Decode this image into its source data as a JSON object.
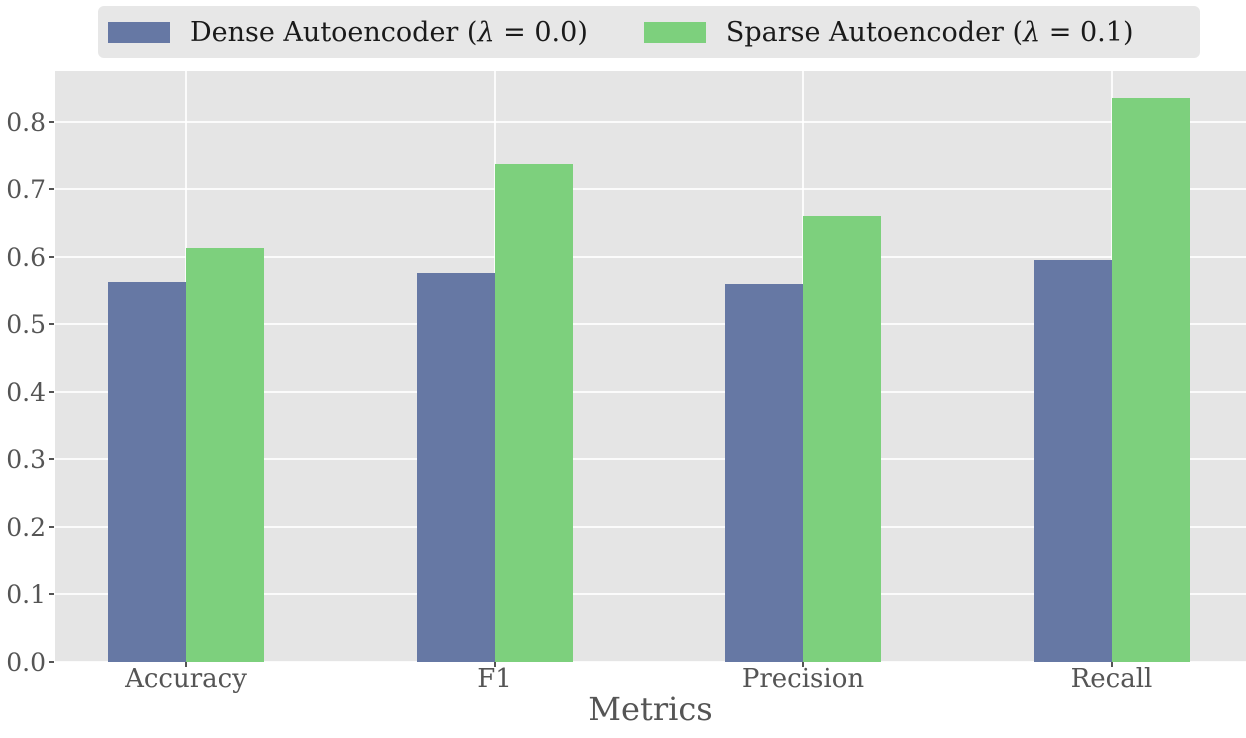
{
  "figure": {
    "background": "#ffffff",
    "plot_background": "#e5e5e5",
    "gridline_color": "#ffffff",
    "tick_text_color": "#555555",
    "legend_background": "#e7e7e7",
    "legend_text_color": "#1a1a1a"
  },
  "legend": {
    "entries": [
      {
        "pre": "Dense Autoencoder (",
        "lambda": "λ",
        "post": " = 0.0)",
        "color": "#6678a4"
      },
      {
        "pre": "Sparse Autoencoder (",
        "lambda": "λ",
        "post": " = 0.1)",
        "color": "#7dd07d"
      }
    ]
  },
  "chart_data": {
    "type": "bar",
    "title": "",
    "xlabel": "Metrics",
    "ylabel": "",
    "categories": [
      "Accuracy",
      "F1",
      "Precision",
      "Recall"
    ],
    "series": [
      {
        "name": "Dense Autoencoder (λ = 0.0)",
        "color": "#6678a4",
        "values": [
          0.563,
          0.576,
          0.559,
          0.595
        ]
      },
      {
        "name": "Sparse Autoencoder (λ = 0.1)",
        "color": "#7dd07d",
        "values": [
          0.613,
          0.738,
          0.661,
          0.835
        ]
      }
    ],
    "ylim": [
      0,
      0.875
    ],
    "yticks": [
      "0.0",
      "0.1",
      "0.2",
      "0.3",
      "0.4",
      "0.5",
      "0.6",
      "0.7",
      "0.8"
    ],
    "grid": true,
    "legend_position": "top"
  }
}
